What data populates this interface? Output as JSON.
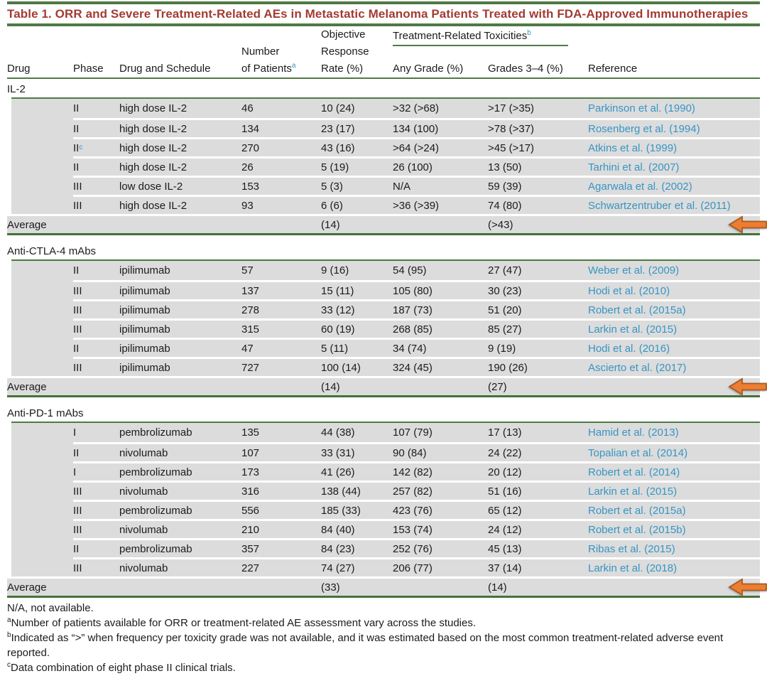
{
  "title": "Table 1.  ORR and Severe Treatment-Related AEs in Metastatic Melanoma Patients Treated with FDA-Approved Immunotherapies",
  "header": {
    "col_drug": "Drug",
    "col_phase": "Phase",
    "col_schedule": "Drug and Schedule",
    "col_patients_line1": "Number",
    "col_patients_line2": "of Patients",
    "col_patients_sup": "a",
    "col_orr_line1": "Objective",
    "col_orr_line2": "Response",
    "col_orr_line3": "Rate (%)",
    "toxicities_group": "Treatment-Related Toxicities",
    "toxicities_sup": "b",
    "col_any_grade": "Any Grade (%)",
    "col_grades34": "Grades 3–4 (%)",
    "col_reference": "Reference"
  },
  "sections": [
    {
      "name": "IL-2",
      "rows": [
        {
          "phase": "II",
          "phase_sup": "",
          "schedule": "high dose IL-2",
          "patients": "46",
          "orr": "10 (24)",
          "any_grade": ">32 (>68)",
          "grades34": ">17 (>35)",
          "reference": "Parkinson et al. (1990)"
        },
        {
          "phase": "II",
          "phase_sup": "",
          "schedule": "high dose IL-2",
          "patients": "134",
          "orr": "23 (17)",
          "any_grade": "134 (100)",
          "grades34": ">78 (>37)",
          "reference": "Rosenberg et al. (1994)"
        },
        {
          "phase": "II",
          "phase_sup": "c",
          "schedule": "high dose IL-2",
          "patients": "270",
          "orr": "43 (16)",
          "any_grade": ">64 (>24)",
          "grades34": ">45 (>17)",
          "reference": "Atkins et al. (1999)"
        },
        {
          "phase": "II",
          "phase_sup": "",
          "schedule": "high dose IL-2",
          "patients": "26",
          "orr": "5 (19)",
          "any_grade": "26 (100)",
          "grades34": "13 (50)",
          "reference": "Tarhini et al. (2007)"
        },
        {
          "phase": "III",
          "phase_sup": "",
          "schedule": "low dose IL-2",
          "patients": "153",
          "orr": "5 (3)",
          "any_grade": "N/A",
          "grades34": "59 (39)",
          "reference": "Agarwala et al. (2002)"
        },
        {
          "phase": "III",
          "phase_sup": "",
          "schedule": "high dose IL-2",
          "patients": "93",
          "orr": "6 (6)",
          "any_grade": ">36 (>39)",
          "grades34": "74 (80)",
          "reference": "Schwartzentruber et al. (2011)"
        }
      ],
      "average": {
        "label": "Average",
        "orr": "(14)",
        "grades34": "(>43)"
      }
    },
    {
      "name": "Anti-CTLA-4 mAbs",
      "rows": [
        {
          "phase": "II",
          "phase_sup": "",
          "schedule": "ipilimumab",
          "patients": "57",
          "orr": "9 (16)",
          "any_grade": "54 (95)",
          "grades34": "27 (47)",
          "reference": "Weber et al. (2009)"
        },
        {
          "phase": "III",
          "phase_sup": "",
          "schedule": "ipilimumab",
          "patients": "137",
          "orr": "15 (11)",
          "any_grade": "105 (80)",
          "grades34": "30 (23)",
          "reference": "Hodi et al. (2010)"
        },
        {
          "phase": "III",
          "phase_sup": "",
          "schedule": "ipilimumab",
          "patients": "278",
          "orr": "33 (12)",
          "any_grade": "187 (73)",
          "grades34": "51 (20)",
          "reference": "Robert et al. (2015a)"
        },
        {
          "phase": "III",
          "phase_sup": "",
          "schedule": "ipilimumab",
          "patients": "315",
          "orr": "60 (19)",
          "any_grade": "268 (85)",
          "grades34": "85 (27)",
          "reference": "Larkin et al. (2015)"
        },
        {
          "phase": "II",
          "phase_sup": "",
          "schedule": "ipilimumab",
          "patients": "47",
          "orr": "5 (11)",
          "any_grade": "34 (74)",
          "grades34": "9 (19)",
          "reference": "Hodi et al. (2016)"
        },
        {
          "phase": "III",
          "phase_sup": "",
          "schedule": "ipilimumab",
          "patients": "727",
          "orr": "100 (14)",
          "any_grade": "324 (45)",
          "grades34": "190 (26)",
          "reference": "Ascierto et al. (2017)"
        }
      ],
      "average": {
        "label": "Average",
        "orr": "(14)",
        "grades34": "(27)"
      }
    },
    {
      "name": "Anti-PD-1 mAbs",
      "rows": [
        {
          "phase": "I",
          "phase_sup": "",
          "schedule": "pembrolizumab",
          "patients": "135",
          "orr": "44 (38)",
          "any_grade": "107 (79)",
          "grades34": "17 (13)",
          "reference": "Hamid et al. (2013)"
        },
        {
          "phase": "II",
          "phase_sup": "",
          "schedule": "nivolumab",
          "patients": "107",
          "orr": "33 (31)",
          "any_grade": "90 (84)",
          "grades34": "24 (22)",
          "reference": "Topalian et al. (2014)"
        },
        {
          "phase": "I",
          "phase_sup": "",
          "schedule": "pembrolizumab",
          "patients": "173",
          "orr": "41 (26)",
          "any_grade": "142 (82)",
          "grades34": "20 (12)",
          "reference": "Robert et al. (2014)"
        },
        {
          "phase": "III",
          "phase_sup": "",
          "schedule": "nivolumab",
          "patients": "316",
          "orr": "138 (44)",
          "any_grade": "257 (82)",
          "grades34": "51 (16)",
          "reference": "Larkin et al. (2015)"
        },
        {
          "phase": "III",
          "phase_sup": "",
          "schedule": "pembrolizumab",
          "patients": "556",
          "orr": "185 (33)",
          "any_grade": "423 (76)",
          "grades34": "65 (12)",
          "reference": "Robert et al. (2015a)"
        },
        {
          "phase": "III",
          "phase_sup": "",
          "schedule": "nivolumab",
          "patients": "210",
          "orr": "84 (40)",
          "any_grade": "153 (74)",
          "grades34": "24 (12)",
          "reference": "Robert et al. (2015b)"
        },
        {
          "phase": "II",
          "phase_sup": "",
          "schedule": "pembrolizumab",
          "patients": "357",
          "orr": "84 (23)",
          "any_grade": "252 (76)",
          "grades34": "45 (13)",
          "reference": "Ribas et al. (2015)"
        },
        {
          "phase": "III",
          "phase_sup": "",
          "schedule": "nivolumab",
          "patients": "227",
          "orr": "74 (27)",
          "any_grade": "206 (77)",
          "grades34": "37 (14)",
          "reference": "Larkin et al. (2018)"
        }
      ],
      "average": {
        "label": "Average",
        "orr": "(33)",
        "grades34": "(14)"
      }
    }
  ],
  "footnotes": [
    {
      "sup": "",
      "text": "N/A, not available."
    },
    {
      "sup": "a",
      "text": "Number of patients available for ORR or treatment-related AE assessment vary across the studies."
    },
    {
      "sup": "b",
      "text": "Indicated as “>” when frequency per toxicity grade was not available, and it was estimated based on the most common treatment-related adverse event reported."
    },
    {
      "sup": "c",
      "text": "Data combination of eight phase II clinical trials."
    }
  ],
  "colors": {
    "accent_green": "#4f7a44",
    "title_red": "#a23b34",
    "link_blue": "#3795c4",
    "row_gray": "#dcdcdc",
    "arrow_fill": "#ed7d31",
    "arrow_stroke": "#a85c1e"
  },
  "icons": {
    "left_arrow": "left-arrow-icon"
  }
}
